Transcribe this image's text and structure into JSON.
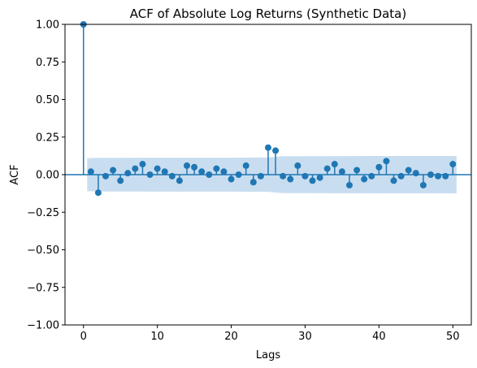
{
  "chart_data": {
    "type": "scatter",
    "title": "ACF of Absolute Log Returns (Synthetic Data)",
    "xlabel": "Lags",
    "ylabel": "ACF",
    "xlim": [
      -2.5,
      52.5
    ],
    "ylim": [
      -1.0,
      1.0
    ],
    "x_ticks": [
      0,
      10,
      20,
      30,
      40,
      50
    ],
    "x_tick_labels": [
      "0",
      "10",
      "20",
      "30",
      "40",
      "50"
    ],
    "y_ticks": [
      -1.0,
      -0.75,
      -0.5,
      -0.25,
      0.0,
      0.25,
      0.5,
      0.75,
      1.0
    ],
    "y_tick_labels": [
      "−1.00",
      "−0.75",
      "−0.50",
      "−0.25",
      "0.00",
      "0.25",
      "0.50",
      "0.75",
      "1.00"
    ],
    "grid": false,
    "series": [
      {
        "x": [
          0,
          1,
          2,
          3,
          4,
          5,
          6,
          7,
          8,
          9,
          10,
          11,
          12,
          13,
          14,
          15,
          16,
          17,
          18,
          19,
          20,
          21,
          22,
          23,
          24,
          25,
          26,
          27,
          28,
          29,
          30,
          31,
          32,
          33,
          34,
          35,
          36,
          37,
          38,
          39,
          40,
          41,
          42,
          43,
          44,
          45,
          46,
          47,
          48,
          49,
          50
        ],
        "values": [
          1.0,
          0.02,
          -0.12,
          -0.01,
          0.03,
          -0.04,
          0.01,
          0.04,
          0.07,
          0.0,
          0.04,
          0.02,
          -0.01,
          -0.04,
          0.06,
          0.05,
          0.02,
          0.0,
          0.04,
          0.02,
          -0.03,
          0.0,
          0.06,
          -0.05,
          -0.01,
          0.18,
          0.16,
          -0.01,
          -0.03,
          0.06,
          -0.01,
          -0.04,
          -0.02,
          0.04,
          0.07,
          0.02,
          -0.07,
          0.03,
          -0.03,
          -0.01,
          0.05,
          0.09,
          -0.04,
          -0.01,
          0.03,
          0.01,
          -0.07,
          0.0,
          -0.01,
          -0.01,
          0.07
        ]
      }
    ],
    "confidence_band": {
      "x": [
        0.5,
        1,
        2,
        5,
        10,
        20,
        25,
        26,
        27,
        30,
        40,
        50,
        50.5
      ],
      "upper": [
        0.11,
        0.11,
        0.112,
        0.112,
        0.113,
        0.113,
        0.114,
        0.119,
        0.123,
        0.123,
        0.124,
        0.124,
        0.124
      ],
      "lower": [
        -0.11,
        -0.11,
        -0.112,
        -0.112,
        -0.113,
        -0.113,
        -0.114,
        -0.119,
        -0.123,
        -0.123,
        -0.124,
        -0.124,
        -0.124
      ]
    },
    "colors": {
      "marker": "#1f77b4",
      "stem": "#1f77b4",
      "band": "#c6dbef",
      "zero_line": "#1f77b4"
    }
  }
}
